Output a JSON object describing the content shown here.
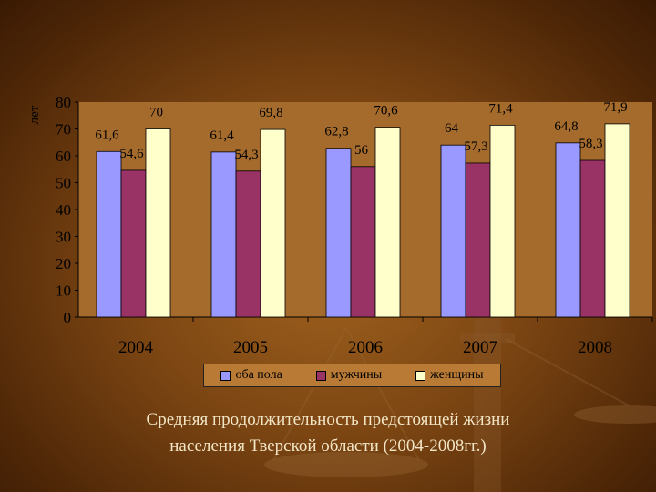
{
  "chart_data": {
    "type": "bar",
    "categories": [
      "2004",
      "2005",
      "2006",
      "2007",
      "2008"
    ],
    "series": [
      {
        "name": "оба пола",
        "values": [
          61.6,
          61.4,
          62.8,
          64,
          64.8
        ],
        "labels": [
          "61,6",
          "61,4",
          "62,8",
          "64",
          "64,8"
        ],
        "color": "#9999ff"
      },
      {
        "name": "мужчины",
        "values": [
          54.6,
          54.3,
          56,
          57.3,
          58.3
        ],
        "labels": [
          "54,6",
          "54,3",
          "56",
          "57,3",
          "58,3"
        ],
        "color": "#993366"
      },
      {
        "name": "женщины",
        "values": [
          70,
          69.8,
          70.6,
          71.4,
          71.9
        ],
        "labels": [
          "70",
          "69,8",
          "70,6",
          "71,4",
          "71,9"
        ],
        "color": "#ffffcc"
      }
    ],
    "ylabel": "лет",
    "ylim": [
      0,
      80
    ],
    "yticks": [
      "0",
      "10",
      "20",
      "30",
      "40",
      "50",
      "60",
      "70",
      "80"
    ],
    "legend": "bottom",
    "grid": false
  },
  "caption": {
    "line1": "Средняя продолжительность предстоящей жизни",
    "line2": "населения Тверской области (2004-2008гг.)"
  }
}
